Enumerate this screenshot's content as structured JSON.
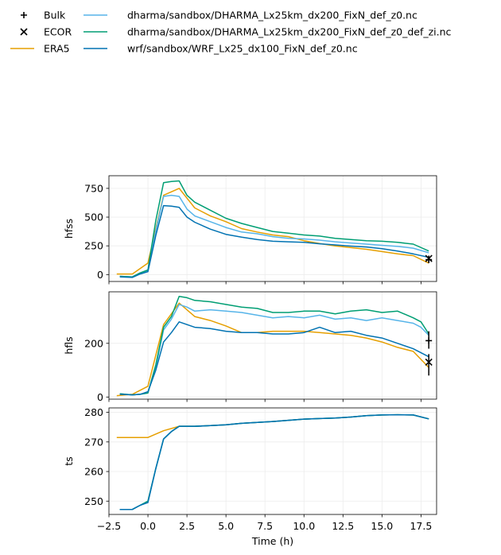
{
  "legend": {
    "placement": "top-left, outside axes",
    "entries": [
      {
        "label": "Bulk",
        "marker": "plus",
        "color": "#000000"
      },
      {
        "label": "ECOR",
        "marker": "x",
        "color": "#000000"
      },
      {
        "label": "ERA5",
        "marker": "line",
        "color": "#E69F00"
      },
      {
        "label": "dharma/sandbox/DHARMA_Lx25km_dx200_FixN_def_z0.nc",
        "marker": "line",
        "color": "#56B4E9"
      },
      {
        "label": "dharma/sandbox/DHARMA_Lx25km_dx200_FixN_def_z0_def_zi.nc",
        "marker": "line",
        "color": "#009E73"
      },
      {
        "label": "wrf/sandbox/WRF_Lx25_dx100_FixN_def_z0.nc",
        "marker": "line",
        "color": "#0072B2"
      }
    ]
  },
  "chart_data": [
    {
      "type": "line",
      "ylabel": "hfss",
      "xlabel": "",
      "xlim": [
        -2.5,
        18.5
      ],
      "ylim": [
        -60,
        860
      ],
      "grid": true,
      "yticks": [
        0,
        250,
        500,
        750
      ],
      "series": [
        {
          "name": "ERA5",
          "color": "#E69F00",
          "x": [
            -2,
            -1,
            0,
            1,
            2,
            3,
            4,
            5,
            6,
            7,
            8,
            9,
            10,
            11,
            12,
            13,
            14,
            15,
            16,
            17,
            18
          ],
          "y": [
            5,
            5,
            100,
            690,
            750,
            580,
            510,
            460,
            400,
            370,
            345,
            330,
            295,
            270,
            250,
            235,
            220,
            200,
            180,
            165,
            100
          ]
        },
        {
          "name": "dharma/sandbox/DHARMA_Lx25km_dx200_FixN_def_z0.nc",
          "color": "#56B4E9",
          "x": [
            -1.8,
            -1,
            -0.5,
            0,
            0.5,
            1,
            1.5,
            2,
            2.5,
            3,
            4,
            5,
            6,
            7,
            8,
            9,
            10,
            11,
            12,
            13,
            14,
            15,
            16,
            17,
            18
          ],
          "y": [
            -15,
            -20,
            10,
            35,
            380,
            680,
            690,
            680,
            570,
            510,
            460,
            410,
            370,
            355,
            330,
            315,
            310,
            300,
            285,
            275,
            265,
            255,
            245,
            230,
            190
          ]
        },
        {
          "name": "dharma/sandbox/DHARMA_Lx25km_dx200_FixN_def_z0_def_zi.nc",
          "color": "#009E73",
          "x": [
            -1.8,
            -1,
            -0.5,
            0,
            0.5,
            1,
            1.5,
            2,
            2.5,
            3,
            4,
            5,
            6,
            7,
            8,
            9,
            10,
            11,
            12,
            13,
            14,
            15,
            16,
            17,
            18
          ],
          "y": [
            -15,
            -20,
            15,
            40,
            470,
            800,
            810,
            815,
            690,
            630,
            560,
            490,
            445,
            410,
            375,
            360,
            345,
            335,
            315,
            305,
            295,
            290,
            280,
            265,
            205
          ]
        },
        {
          "name": "wrf/sandbox/WRF_Lx25_dx100_FixN_def_z0.nc",
          "color": "#0072B2",
          "x": [
            -1.8,
            -1,
            -0.5,
            0,
            0.5,
            1,
            1.5,
            2,
            2.5,
            3,
            4,
            5,
            6,
            7,
            8,
            9,
            10,
            11,
            12,
            13,
            14,
            15,
            16,
            17,
            18
          ],
          "y": [
            -20,
            -25,
            5,
            25,
            340,
            600,
            595,
            585,
            500,
            455,
            395,
            350,
            325,
            305,
            290,
            285,
            280,
            268,
            258,
            248,
            240,
            225,
            205,
            180,
            150
          ]
        }
      ],
      "markers": [
        {
          "name": "Bulk",
          "shape": "plus",
          "x": 18,
          "y": 130,
          "err": [
            100,
            160
          ]
        },
        {
          "name": "ECOR",
          "shape": "x",
          "x": 18,
          "y": 140,
          "err": [
            115,
            165
          ]
        }
      ]
    },
    {
      "type": "line",
      "ylabel": "hfls",
      "xlabel": "",
      "xlim": [
        -2.5,
        18.5
      ],
      "ylim": [
        -8,
        392
      ],
      "grid": true,
      "yticks": [
        0,
        200
      ],
      "series": [
        {
          "name": "ERA5",
          "color": "#E69F00",
          "x": [
            -2,
            -1,
            0,
            1,
            2,
            3,
            4,
            5,
            6,
            7,
            8,
            9,
            10,
            11,
            12,
            13,
            14,
            15,
            16,
            17,
            18
          ],
          "y": [
            5,
            10,
            40,
            270,
            350,
            300,
            285,
            265,
            240,
            240,
            245,
            245,
            245,
            240,
            235,
            230,
            220,
            205,
            185,
            170,
            110
          ]
        },
        {
          "name": "dharma/sandbox/DHARMA_Lx25km_dx200_FixN_def_z0.nc",
          "color": "#56B4E9",
          "x": [
            -1.8,
            -1,
            -0.5,
            0,
            0.5,
            1,
            1.5,
            2,
            2.5,
            3,
            4,
            5,
            6,
            7,
            8,
            9,
            10,
            11,
            12,
            13,
            14,
            15,
            16,
            17,
            17.5,
            18
          ],
          "y": [
            12,
            8,
            10,
            15,
            110,
            250,
            290,
            345,
            335,
            320,
            325,
            320,
            315,
            305,
            295,
            300,
            295,
            305,
            290,
            295,
            285,
            295,
            285,
            275,
            260,
            230
          ]
        },
        {
          "name": "dharma/sandbox/DHARMA_Lx25km_dx200_FixN_def_z0_def_zi.nc",
          "color": "#009E73",
          "x": [
            -1.8,
            -1,
            -0.5,
            0,
            0.5,
            1,
            1.5,
            2,
            2.5,
            3,
            4,
            5,
            6,
            7,
            8,
            9,
            10,
            11,
            12,
            13,
            14,
            15,
            16,
            17,
            17.5,
            18
          ],
          "y": [
            12,
            8,
            10,
            15,
            120,
            260,
            300,
            375,
            370,
            360,
            355,
            345,
            335,
            330,
            315,
            315,
            320,
            320,
            310,
            320,
            325,
            315,
            320,
            295,
            280,
            235
          ]
        },
        {
          "name": "wrf/sandbox/WRF_Lx25_dx100_FixN_def_z0.nc",
          "color": "#0072B2",
          "x": [
            -1.8,
            -1,
            -0.5,
            0,
            0.5,
            1,
            1.5,
            2,
            2.5,
            3,
            4,
            5,
            6,
            7,
            8,
            9,
            10,
            11,
            12,
            13,
            14,
            15,
            16,
            17,
            18
          ],
          "y": [
            10,
            8,
            10,
            20,
            100,
            205,
            240,
            280,
            270,
            260,
            255,
            245,
            240,
            240,
            235,
            235,
            240,
            260,
            240,
            245,
            230,
            220,
            200,
            180,
            150
          ]
        }
      ],
      "markers": [
        {
          "name": "Bulk",
          "shape": "plus",
          "x": 18,
          "y": 210,
          "err": [
            180,
            245
          ]
        },
        {
          "name": "ECOR",
          "shape": "x",
          "x": 18,
          "y": 130,
          "err": [
            80,
            160
          ]
        }
      ]
    },
    {
      "type": "line",
      "ylabel": "ts",
      "xlabel": "Time (h)",
      "xlim": [
        -2.5,
        18.5
      ],
      "ylim": [
        245.5,
        281.5
      ],
      "grid": true,
      "yticks": [
        250,
        260,
        270,
        280
      ],
      "xticks": [
        -2.5,
        0.0,
        2.5,
        5.0,
        7.5,
        10.0,
        12.5,
        15.0,
        17.5
      ],
      "xtick_labels": [
        "−2.5",
        "0.0",
        "2.5",
        "5.0",
        "7.5",
        "10.0",
        "12.5",
        "15.0",
        "17.5"
      ],
      "series": [
        {
          "name": "ERA5",
          "color": "#E69F00",
          "x": [
            -2,
            -1,
            0,
            1,
            2,
            3,
            4,
            5,
            6,
            7,
            8,
            9,
            10,
            11,
            12,
            13,
            14,
            15,
            16,
            17,
            18
          ],
          "y": [
            271.5,
            271.5,
            271.5,
            273.8,
            275.3,
            275.3,
            275.5,
            275.8,
            276.3,
            276.6,
            276.9,
            277.3,
            277.7,
            277.9,
            278.1,
            278.4,
            278.9,
            279.1,
            279.2,
            279.1,
            277.8
          ]
        },
        {
          "name": "dharma/sandbox/DHARMA_Lx25km_dx200_FixN_def_z0.nc",
          "color": "#56B4E9",
          "x": [
            -1.8,
            -1,
            -0.5,
            0,
            0.5,
            1,
            1.5,
            2,
            3,
            4,
            5,
            6,
            7,
            8,
            9,
            10,
            11,
            12,
            13,
            14,
            15,
            16,
            17,
            18
          ],
          "y": [
            247.2,
            247.2,
            248.6,
            250,
            261,
            271,
            273.5,
            275.3,
            275.3,
            275.5,
            275.8,
            276.3,
            276.6,
            276.9,
            277.3,
            277.7,
            277.9,
            278.1,
            278.4,
            278.9,
            279.1,
            279.2,
            279.1,
            277.8
          ]
        },
        {
          "name": "dharma/sandbox/DHARMA_Lx25km_dx200_FixN_def_z0_def_zi.nc",
          "color": "#009E73",
          "x": [
            -1.8,
            -1,
            -0.5,
            0,
            0.5,
            1,
            1.5,
            2,
            3,
            4,
            5,
            6,
            7,
            8,
            9,
            10,
            11,
            12,
            13,
            14,
            15,
            16,
            17,
            18
          ],
          "y": [
            247.2,
            247.2,
            248.6,
            250,
            261,
            271,
            273.5,
            275.3,
            275.3,
            275.5,
            275.8,
            276.3,
            276.6,
            276.9,
            277.3,
            277.7,
            277.9,
            278.1,
            278.4,
            278.9,
            279.1,
            279.2,
            279.1,
            277.8
          ]
        },
        {
          "name": "wrf/sandbox/WRF_Lx25_dx100_FixN_def_z0.nc",
          "color": "#0072B2",
          "x": [
            -1.8,
            -1,
            -0.5,
            0,
            0.5,
            1,
            1.5,
            2,
            3,
            4,
            5,
            6,
            7,
            8,
            9,
            10,
            11,
            12,
            13,
            14,
            15,
            16,
            17,
            18
          ],
          "y": [
            247.2,
            247.2,
            248.6,
            249.5,
            261,
            271,
            273.5,
            275.3,
            275.3,
            275.5,
            275.8,
            276.3,
            276.6,
            276.9,
            277.3,
            277.7,
            277.9,
            278.1,
            278.4,
            278.9,
            279.1,
            279.2,
            279.1,
            277.8
          ]
        }
      ],
      "markers": []
    }
  ]
}
